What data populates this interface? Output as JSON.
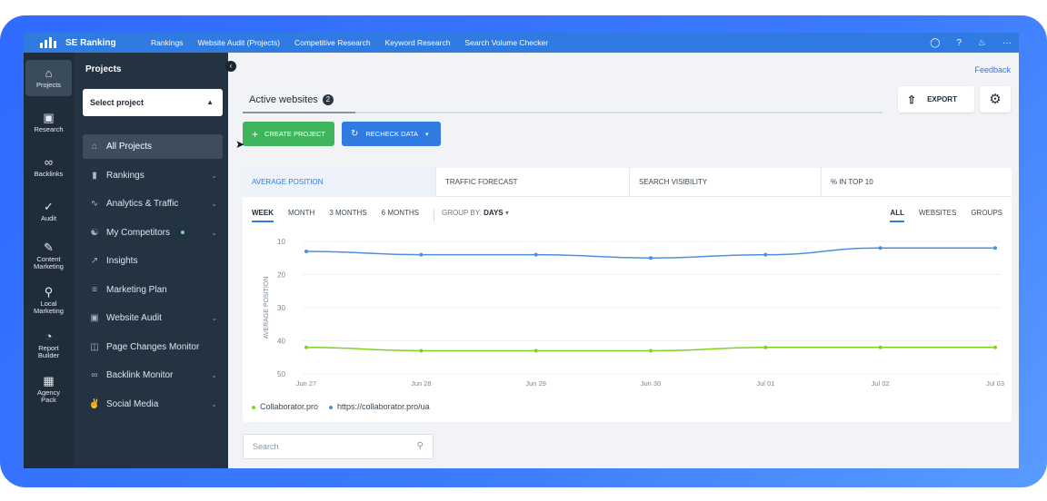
{
  "topbar": {
    "brand": "SE Ranking",
    "nav": [
      "Rankings",
      "Website Audit (Projects)",
      "Competitive Research",
      "Keyword Research",
      "Search Volume Checker"
    ],
    "icons": [
      "lightbulb-icon",
      "help-icon",
      "bell-icon",
      "more-icon"
    ]
  },
  "rail": {
    "items": [
      {
        "label": "Projects",
        "icon": "home-icon",
        "active": true
      },
      {
        "label": "Research",
        "icon": "research-icon"
      },
      {
        "label": "Backlinks",
        "icon": "link-icon"
      },
      {
        "label": "Audit",
        "icon": "check-circle-icon"
      },
      {
        "label": "Content Marketing",
        "icon": "edit-icon"
      },
      {
        "label": "Local Marketing",
        "icon": "location-pin-icon"
      },
      {
        "label": "Report Builder",
        "icon": "pie-chart-icon"
      },
      {
        "label": "Agency Pack",
        "icon": "building-icon"
      }
    ]
  },
  "panel": {
    "title": "Projects",
    "select_placeholder": "Select project",
    "menu": [
      {
        "label": "All Projects",
        "icon": "home-icon",
        "active": true,
        "chevron": false
      },
      {
        "label": "Rankings",
        "icon": "bar-chart-icon",
        "chevron": true
      },
      {
        "label": "Analytics & Traffic",
        "icon": "pulse-icon",
        "chevron": true
      },
      {
        "label": "My Competitors",
        "icon": "competitors-icon",
        "chevron": true,
        "dot": true
      },
      {
        "label": "Insights",
        "icon": "trend-icon",
        "chevron": false
      },
      {
        "label": "Marketing Plan",
        "icon": "checklist-icon",
        "chevron": false
      },
      {
        "label": "Website Audit",
        "icon": "audit-icon",
        "chevron": true
      },
      {
        "label": "Page Changes Monitor",
        "icon": "page-icon",
        "chevron": false
      },
      {
        "label": "Backlink Monitor",
        "icon": "link-icon",
        "chevron": true
      },
      {
        "label": "Social Media",
        "icon": "thumbs-up-icon",
        "chevron": true
      }
    ]
  },
  "main": {
    "feedback": "Feedback",
    "tab_label": "Active websites",
    "tab_count": "2",
    "export_label": "EXPORT",
    "create_label": "CREATE PROJECT",
    "recheck_label": "RECHECK DATA",
    "search_placeholder": "Search"
  },
  "card": {
    "metric_tabs": [
      "AVERAGE POSITION",
      "TRAFFIC FORECAST",
      "SEARCH VISIBILITY",
      "% IN TOP 10"
    ],
    "periods": [
      "WEEK",
      "MONTH",
      "3 MONTHS",
      "6 MONTHS"
    ],
    "group_by_label": "GROUP BY:",
    "group_by_value": "DAYS",
    "views": [
      "ALL",
      "WEBSITES",
      "GROUPS"
    ]
  },
  "chart_data": {
    "type": "line",
    "ylabel": "AVERAGE POSITION",
    "xlabel": "",
    "ylim": [
      10,
      50
    ],
    "y_inverted": true,
    "yticks": [
      "10",
      "20",
      "30",
      "40",
      "50"
    ],
    "categories": [
      "Jun 27",
      "Jun 28",
      "Jun 29",
      "Jun 30",
      "Jul 01",
      "Jul 02",
      "Jul 03"
    ],
    "series": [
      {
        "name": "Collaborator.pro",
        "color": "#7ed321",
        "values": [
          42,
          43,
          43,
          43,
          42,
          42,
          42
        ]
      },
      {
        "name": "https://collaborator.pro/ua",
        "color": "#4a90e2",
        "values": [
          13,
          14,
          14,
          15,
          14,
          12,
          12
        ]
      }
    ],
    "grid": true,
    "legend": "bottom-left"
  }
}
